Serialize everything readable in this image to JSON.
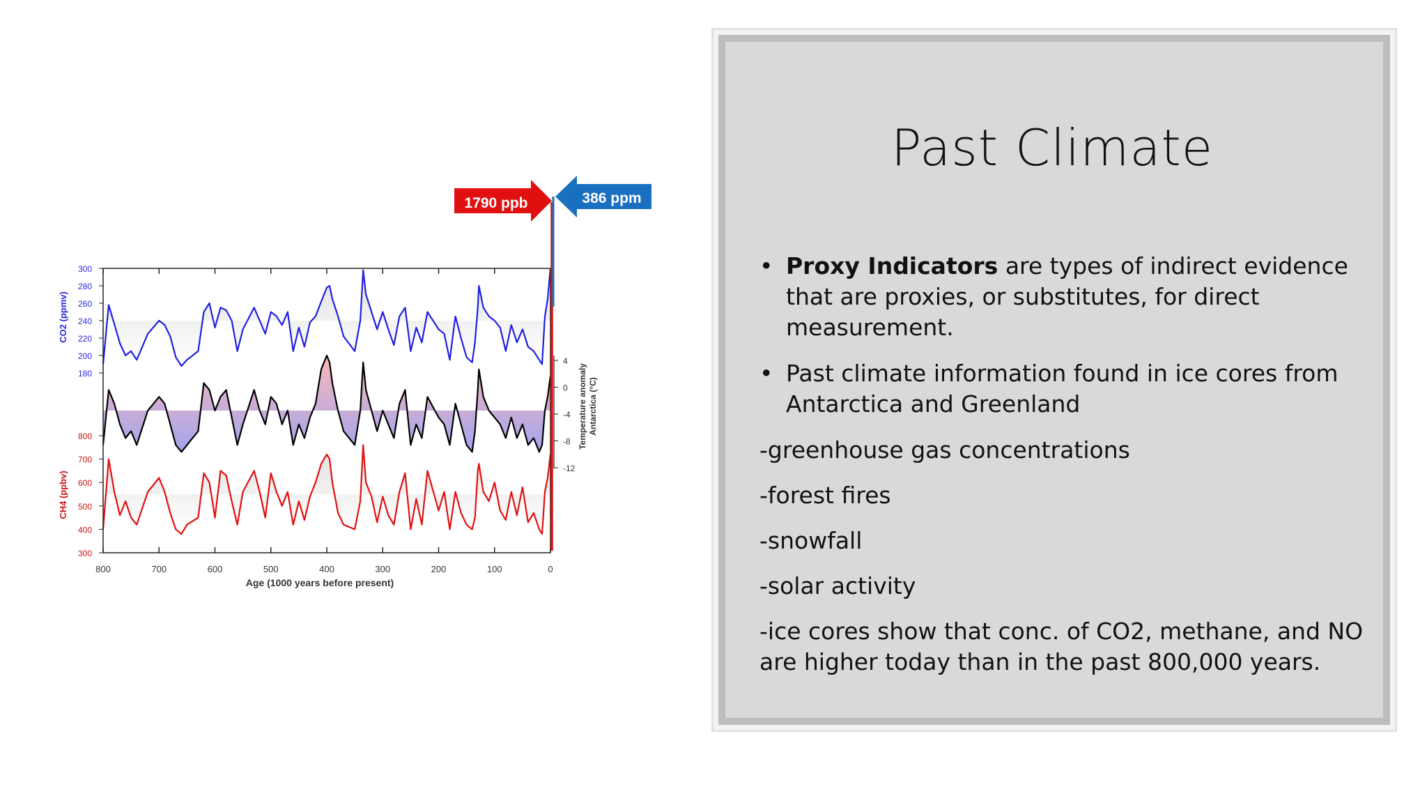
{
  "slide": {
    "title": "Past Climate",
    "bullets": [
      {
        "bold": "Proxy Indicators",
        "text": " are types of indirect evidence that are proxies, or substitutes, for direct measurement."
      },
      {
        "bold": "",
        "text": "Past climate information found in ice cores from Antarctica and Greenland"
      }
    ],
    "lines": [
      "-greenhouse gas concentrations",
      "-forest fires",
      "-snowfall",
      "-solar activity",
      "-ice cores show that conc. of CO2, methane, and NO are higher today than in the past 800,000 years."
    ]
  },
  "chart_data": {
    "type": "line",
    "xlabel": "Age (1000 years before present)",
    "xlim": [
      800,
      0
    ],
    "x_ticks": [
      "800",
      "700",
      "600",
      "500",
      "400",
      "300",
      "200",
      "100",
      "0"
    ],
    "panels": [
      {
        "id": "co2",
        "ylabel": "CO2 (ppmv)",
        "y_ticks": [
          "300",
          "280",
          "260",
          "240",
          "220",
          "200",
          "180"
        ],
        "ylim": [
          180,
          300
        ],
        "color": "#1f1fe0",
        "x": [
          800,
          790,
          780,
          770,
          760,
          750,
          740,
          720,
          700,
          690,
          680,
          670,
          660,
          650,
          630,
          620,
          610,
          600,
          590,
          580,
          570,
          560,
          550,
          530,
          520,
          510,
          500,
          490,
          480,
          470,
          460,
          450,
          440,
          430,
          420,
          410,
          400,
          395,
          390,
          380,
          370,
          350,
          340,
          335,
          330,
          320,
          310,
          300,
          290,
          280,
          270,
          260,
          250,
          240,
          230,
          220,
          200,
          190,
          180,
          170,
          160,
          150,
          140,
          135,
          130,
          128,
          120,
          110,
          100,
          90,
          80,
          70,
          60,
          50,
          40,
          30,
          20,
          15,
          10,
          5,
          0
        ],
        "values": [
          190,
          258,
          236,
          214,
          200,
          205,
          195,
          225,
          240,
          235,
          222,
          198,
          188,
          195,
          205,
          250,
          260,
          232,
          255,
          252,
          240,
          205,
          230,
          255,
          240,
          225,
          250,
          245,
          235,
          250,
          205,
          232,
          210,
          238,
          245,
          262,
          278,
          280,
          265,
          245,
          222,
          205,
          240,
          298,
          270,
          250,
          230,
          250,
          230,
          212,
          245,
          255,
          205,
          232,
          215,
          250,
          230,
          225,
          195,
          245,
          220,
          198,
          192,
          215,
          255,
          280,
          255,
          245,
          240,
          232,
          205,
          235,
          215,
          230,
          210,
          205,
          195,
          190,
          245,
          265,
          300
        ]
      },
      {
        "id": "temp",
        "ylabel": "Temperature anomaly Antarctica (°C)",
        "y_ticks": [
          "4",
          "0",
          "-4",
          "-8",
          "-12"
        ],
        "ylim": [
          -12,
          4
        ],
        "color": "#000000",
        "x": [
          800,
          790,
          780,
          770,
          760,
          750,
          740,
          720,
          700,
          690,
          680,
          670,
          660,
          650,
          630,
          620,
          610,
          600,
          590,
          580,
          570,
          560,
          550,
          530,
          520,
          510,
          500,
          490,
          480,
          470,
          460,
          450,
          440,
          430,
          420,
          410,
          400,
          395,
          390,
          380,
          370,
          350,
          340,
          335,
          330,
          320,
          310,
          300,
          290,
          280,
          270,
          260,
          250,
          240,
          230,
          220,
          200,
          190,
          180,
          170,
          160,
          150,
          140,
          135,
          130,
          128,
          120,
          110,
          100,
          90,
          80,
          70,
          60,
          50,
          40,
          30,
          20,
          15,
          10,
          5,
          0
        ],
        "values": [
          -9,
          -1,
          -3,
          -6,
          -8,
          -7,
          -9,
          -4,
          -2,
          -3,
          -6,
          -9,
          -10,
          -9,
          -7,
          0,
          -1,
          -4,
          -2,
          -1,
          -5,
          -9,
          -6,
          -1,
          -4,
          -6,
          -2,
          -3,
          -6,
          -4,
          -9,
          -6,
          -8,
          -5,
          -3,
          2,
          4,
          3,
          0,
          -4,
          -7,
          -9,
          -4,
          3,
          -1,
          -4,
          -7,
          -4,
          -6,
          -8,
          -3,
          -1,
          -9,
          -6,
          -8,
          -2,
          -5,
          -6,
          -9,
          -3,
          -6,
          -9,
          -10,
          -7,
          -1,
          2,
          -2,
          -4,
          -5,
          -6,
          -8,
          -5,
          -8,
          -6,
          -9,
          -8,
          -10,
          -9,
          -4,
          -2,
          1
        ]
      },
      {
        "id": "ch4",
        "ylabel": "CH4 (ppbv)",
        "y_ticks": [
          "800",
          "700",
          "600",
          "500",
          "400",
          "300"
        ],
        "ylim": [
          300,
          800
        ],
        "color": "#e01010",
        "x": [
          800,
          790,
          780,
          770,
          760,
          750,
          740,
          720,
          700,
          690,
          680,
          670,
          660,
          650,
          630,
          620,
          610,
          600,
          590,
          580,
          570,
          560,
          550,
          530,
          520,
          510,
          500,
          490,
          480,
          470,
          460,
          450,
          440,
          430,
          420,
          410,
          400,
          395,
          390,
          380,
          370,
          350,
          340,
          335,
          330,
          320,
          310,
          300,
          290,
          280,
          270,
          260,
          250,
          240,
          230,
          220,
          200,
          190,
          180,
          170,
          160,
          150,
          140,
          135,
          130,
          128,
          120,
          110,
          100,
          90,
          80,
          70,
          60,
          50,
          40,
          30,
          20,
          15,
          10,
          5,
          0
        ],
        "values": [
          400,
          700,
          560,
          460,
          520,
          450,
          420,
          560,
          620,
          560,
          470,
          400,
          380,
          420,
          450,
          640,
          600,
          450,
          650,
          630,
          520,
          420,
          560,
          650,
          560,
          450,
          640,
          560,
          500,
          560,
          420,
          520,
          440,
          540,
          600,
          680,
          720,
          700,
          600,
          470,
          420,
          400,
          520,
          760,
          600,
          540,
          430,
          540,
          460,
          420,
          560,
          640,
          400,
          530,
          420,
          650,
          480,
          560,
          400,
          560,
          470,
          420,
          400,
          450,
          650,
          680,
          560,
          520,
          600,
          480,
          440,
          560,
          460,
          580,
          430,
          470,
          400,
          380,
          560,
          620,
          720
        ]
      }
    ],
    "annotations": [
      {
        "text": "1790 ppb",
        "color": "#e01010"
      },
      {
        "text": "386 ppm",
        "color": "#1a70c0"
      }
    ]
  }
}
